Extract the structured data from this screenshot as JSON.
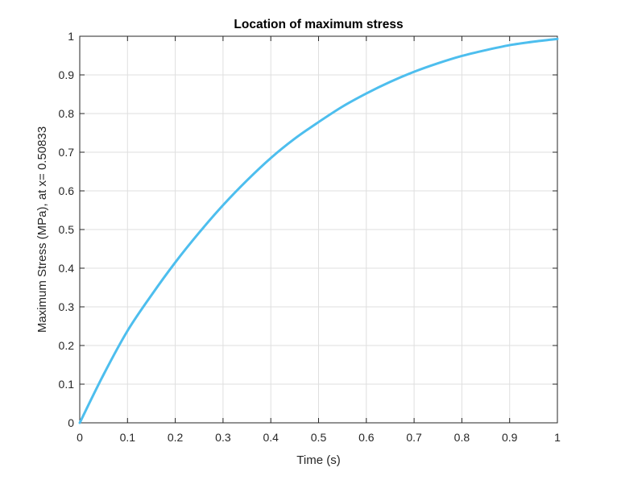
{
  "chart_data": {
    "type": "line",
    "title": "Location of maximum stress",
    "xlabel": "Time (s)",
    "ylabel": "Maximum Stress (MPa), at x= 0.50833",
    "xlim": [
      0,
      1
    ],
    "ylim": [
      0,
      1
    ],
    "xticks": [
      0,
      0.1,
      0.2,
      0.3,
      0.4,
      0.5,
      0.6,
      0.7,
      0.8,
      0.9,
      1
    ],
    "yticks": [
      0,
      0.1,
      0.2,
      0.3,
      0.4,
      0.5,
      0.6,
      0.7,
      0.8,
      0.9,
      1
    ],
    "xtick_labels": [
      "0",
      "0.1",
      "0.2",
      "0.3",
      "0.4",
      "0.5",
      "0.6",
      "0.7",
      "0.8",
      "0.9",
      "1"
    ],
    "ytick_labels": [
      "0",
      "0.1",
      "0.2",
      "0.3",
      "0.4",
      "0.5",
      "0.6",
      "0.7",
      "0.8",
      "0.9",
      "1"
    ],
    "grid": true,
    "line_color": "#4DBEEE",
    "series": [
      {
        "x": [
          0,
          0.05,
          0.1,
          0.15,
          0.2,
          0.25,
          0.3,
          0.35,
          0.4,
          0.45,
          0.5,
          0.55,
          0.6,
          0.65,
          0.7,
          0.75,
          0.8,
          0.85,
          0.9,
          0.95,
          1
        ],
        "y": [
          0,
          0.125,
          0.238,
          0.33,
          0.415,
          0.492,
          0.563,
          0.627,
          0.685,
          0.735,
          0.778,
          0.818,
          0.852,
          0.882,
          0.908,
          0.93,
          0.949,
          0.964,
          0.977,
          0.986,
          0.993
        ]
      }
    ]
  }
}
